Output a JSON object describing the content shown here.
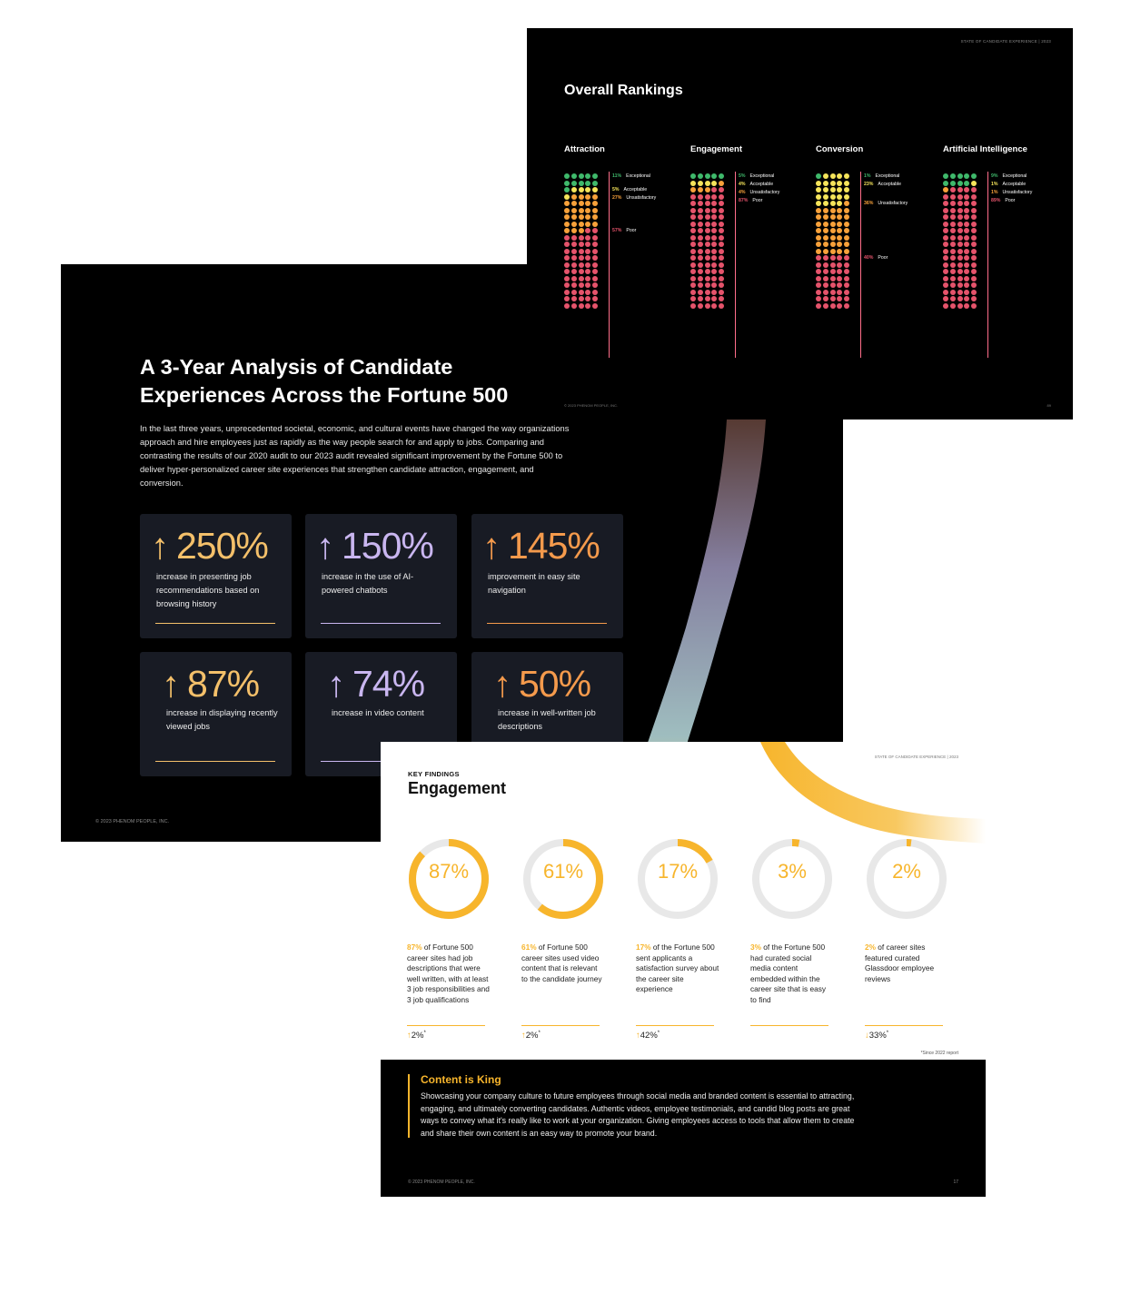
{
  "rankings_page": {
    "header": "STATE OF CANDIDATE EXPERIENCE  |  2023",
    "title": "Overall Rankings",
    "footer": "© 2023 PHENOM PEOPLE, INC.",
    "page_number": "89",
    "columns": [
      {
        "name": "Attraction",
        "counts": {
          "exceptional": 11,
          "acceptable": 5,
          "unsatisfactory": 27,
          "poor": 57
        },
        "labels": [
          {
            "pct": "11%",
            "text": "Exceptional",
            "color": "#3fb96b"
          },
          {
            "pct": "5%",
            "text": "Acceptable",
            "color": "#f5e45a"
          },
          {
            "pct": "27%",
            "text": "Unsatisfactory",
            "color": "#f7a13a"
          },
          {
            "pct": "57%",
            "text": "Poor",
            "color": "#e5536b"
          }
        ]
      },
      {
        "name": "Engagement",
        "counts": {
          "exceptional": 5,
          "acceptable": 4,
          "unsatisfactory": 4,
          "poor": 87
        },
        "labels": [
          {
            "pct": "5%",
            "text": "Exceptional",
            "color": "#3fb96b"
          },
          {
            "pct": "4%",
            "text": "Acceptable",
            "color": "#f5e45a"
          },
          {
            "pct": "4%",
            "text": "Unsatisfactory",
            "color": "#f7a13a"
          },
          {
            "pct": "87%",
            "text": "Poor",
            "color": "#e5536b"
          }
        ]
      },
      {
        "name": "Conversion",
        "counts": {
          "exceptional": 1,
          "acceptable": 23,
          "unsatisfactory": 36,
          "poor": 40
        },
        "labels": [
          {
            "pct": "1%",
            "text": "Exceptional",
            "color": "#3fb96b"
          },
          {
            "pct": "23%",
            "text": "Acceptable",
            "color": "#f5e45a"
          },
          {
            "pct": "36%",
            "text": "Unsatisfactory",
            "color": "#f7a13a"
          },
          {
            "pct": "40%",
            "text": "Poor",
            "color": "#e5536b"
          }
        ]
      },
      {
        "name": "Artificial Intelligence",
        "counts": {
          "exceptional": 9,
          "acceptable": 1,
          "unsatisfactory": 1,
          "poor": 89
        },
        "labels": [
          {
            "pct": "9%",
            "text": "Exceptional",
            "color": "#3fb96b"
          },
          {
            "pct": "1%",
            "text": "Acceptable",
            "color": "#f5e45a"
          },
          {
            "pct": "1%",
            "text": "Unsatisfactory",
            "color": "#f7a13a"
          },
          {
            "pct": "89%",
            "text": "Poor",
            "color": "#e5536b"
          }
        ]
      }
    ]
  },
  "analysis_page": {
    "title_line1": "A 3-Year Analysis of Candidate",
    "title_line2": "Experiences Across the Fortune 500",
    "intro": "In the last three years, unprecedented societal, economic, and cultural events have changed the way organizations approach and hire employees just as rapidly as the way people search for and apply to jobs. Comparing and contrasting the results of our 2020 audit to our 2023 audit revealed significant improvement by the Fortune 500 to deliver hyper-personalized career site experiences that strengthen candidate attraction, engagement, and conversion.",
    "footer": "© 2023 PHENOM PEOPLE, INC.",
    "stats": [
      {
        "arrow": "↑",
        "value": "250%",
        "desc": "increase in presenting job recommendations based on browsing history",
        "color": "#f4c06a"
      },
      {
        "arrow": "↑",
        "value": "150%",
        "desc": "increase in the use of AI-powered chatbots",
        "color": "#c9b6f0"
      },
      {
        "arrow": "↑",
        "value": "145%",
        "desc": "improvement in easy site navigation",
        "color": "#f49a4c"
      },
      {
        "arrow": "↑",
        "value": "87%",
        "desc": "increase in displaying recently viewed jobs",
        "color": "#f4c06a"
      },
      {
        "arrow": "↑",
        "value": "74%",
        "desc": "increase in video content",
        "color": "#c9b6f0"
      },
      {
        "arrow": "↑",
        "value": "50%",
        "desc": "increase in well-written job descriptions",
        "color": "#f49a4c"
      }
    ]
  },
  "engagement_page": {
    "header": "STATE OF CANDIDATE EXPERIENCE  |  2023",
    "kicker": "KEY FINDINGS",
    "title": "Engagement",
    "accent_color": "#f7b52c",
    "donuts": [
      {
        "value": 87,
        "label": "87%",
        "highlight": "87%",
        "text": " of Fortune 500 career sites had job descriptions that were well written, with at least 3 job responsibilities and 3 job qualifications",
        "arrow": "↑",
        "change": "2%",
        "note": "*"
      },
      {
        "value": 61,
        "label": "61%",
        "highlight": "61%",
        "text": " of Fortune 500 career sites used video content that is relevant to the candidate journey",
        "arrow": "↑",
        "change": "2%",
        "note": "*"
      },
      {
        "value": 17,
        "label": "17%",
        "highlight": "17%",
        "text": " of the Fortune 500 sent applicants a satisfaction survey about the career site experience",
        "arrow": "↑",
        "change": "42%",
        "note": "*"
      },
      {
        "value": 3,
        "label": "3%",
        "highlight": "3%",
        "text": " of the Fortune 500 had curated social media content embedded within the career site that is easy to find",
        "arrow": "",
        "change": "",
        "note": ""
      },
      {
        "value": 2,
        "label": "2%",
        "highlight": "2%",
        "text": " of career sites featured curated Glassdoor employee reviews",
        "arrow": "↓",
        "change": "33%",
        "note": "*"
      }
    ],
    "since_note": "*Since 2022 report",
    "content_king_title": "Content is King",
    "content_king_body": "Showcasing your company culture to future employees through social media and branded content is essential to attracting, engaging, and ultimately converting candidates. Authentic videos, employee testimonials, and candid blog posts are great ways to convey what it's really like to work at your organization. Giving employees access to tools that allow them to create and share their own content is an easy way to promote your brand.",
    "footer": "© 2023 PHENOM PEOPLE, INC.",
    "page_number": "17"
  }
}
